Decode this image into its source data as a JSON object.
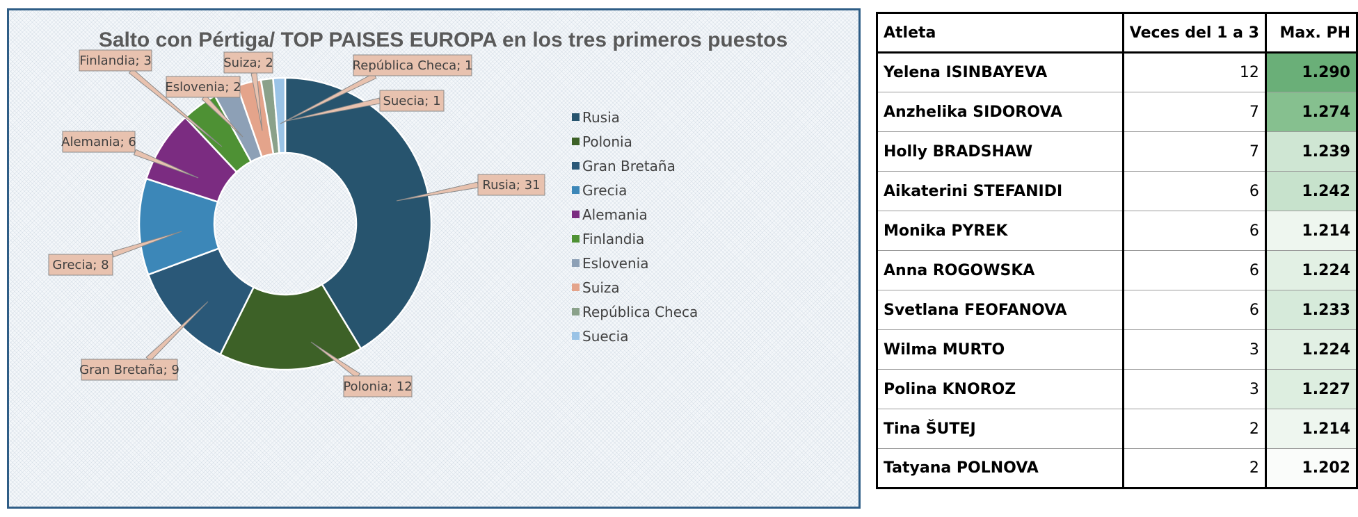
{
  "chart_data": {
    "type": "pie",
    "subtype": "doughnut",
    "title": "Salto con Pértiga/ TOP  PAISES EUROPA en los tres primeros puestos",
    "legend_position": "right",
    "categories": [
      "Rusia",
      "Polonia",
      "Gran Bretaña",
      "Grecia",
      "Alemania",
      "Finlandia",
      "Eslovenia",
      "Suiza",
      "República Checa",
      "Suecia"
    ],
    "values": [
      31,
      12,
      9,
      8,
      6,
      3,
      2,
      2,
      1,
      1
    ],
    "colors": [
      "#27546e",
      "#3d6127",
      "#2a5878",
      "#3c87b8",
      "#7b2c81",
      "#4e9134",
      "#8da0b6",
      "#e4a48b",
      "#8aa18a",
      "#9ac3e6"
    ],
    "labels": [
      "Rusia; 31",
      "Polonia; 12",
      "Gran Bretaña; 9",
      "Grecia; 8",
      "Alemania; 6",
      "Finlandia; 3",
      "Eslovenia; 2",
      "Suiza; 2",
      "República Checa; 1",
      "Suecia; 1"
    ]
  },
  "table": {
    "headers": [
      "Atleta",
      "Veces del 1 a 3",
      "Max. PH"
    ],
    "rows": [
      {
        "athlete": "Yelena ISINBAYEVA",
        "times": "12",
        "max": "1.290",
        "shade": "#6aaf78"
      },
      {
        "athlete": "Anzhelika SIDOROVA",
        "times": "7",
        "max": "1.274",
        "shade": "#86c08f"
      },
      {
        "athlete": "Holly BRADSHAW",
        "times": "7",
        "max": "1.239",
        "shade": "#cfe6d3"
      },
      {
        "athlete": "Aikaterini STEFANIDI",
        "times": "6",
        "max": "1.242",
        "shade": "#c7e2cc"
      },
      {
        "athlete": "Monika PYREK",
        "times": "6",
        "max": "1.214",
        "shade": "#eef6ef"
      },
      {
        "athlete": "Anna ROGOWSKA",
        "times": "6",
        "max": "1.224",
        "shade": "#e2f0e4"
      },
      {
        "athlete": "Svetlana FEOFANOVA",
        "times": "6",
        "max": "1.233",
        "shade": "#d6eada"
      },
      {
        "athlete": "Wilma MURTO",
        "times": "3",
        "max": "1.224",
        "shade": "#e2f0e4"
      },
      {
        "athlete": "Polina KNOROZ",
        "times": "3",
        "max": "1.227",
        "shade": "#ddeee0"
      },
      {
        "athlete": "Tina ŠUTEJ",
        "times": "2",
        "max": "1.214",
        "shade": "#eef6ef"
      },
      {
        "athlete": "Tatyana POLNOVA",
        "times": "2",
        "max": "1.202",
        "shade": "#fafcfa"
      }
    ]
  }
}
